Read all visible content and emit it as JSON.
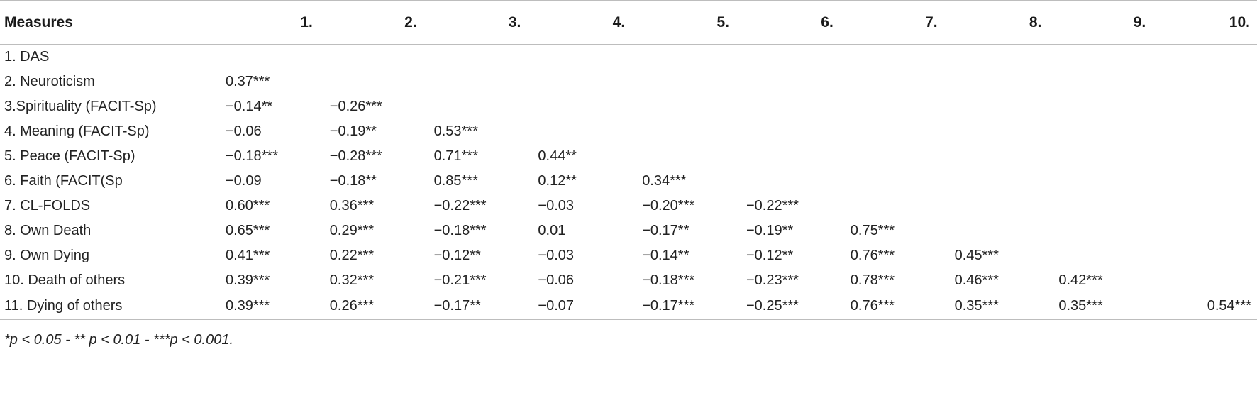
{
  "table": {
    "headers": [
      "Measures",
      "1.",
      "2.",
      "3.",
      "4.",
      "5.",
      "6.",
      "7.",
      "8.",
      "9.",
      "10."
    ],
    "rows": [
      {
        "label": "1. DAS",
        "cells": [
          "",
          "",
          "",
          "",
          "",
          "",
          "",
          "",
          "",
          ""
        ]
      },
      {
        "label": "2. Neuroticism",
        "cells": [
          "0.37***",
          "",
          "",
          "",
          "",
          "",
          "",
          "",
          "",
          ""
        ]
      },
      {
        "label": "3.Spirituality (FACIT-Sp)",
        "cells": [
          "−0.14**",
          "−0.26***",
          "",
          "",
          "",
          "",
          "",
          "",
          "",
          ""
        ]
      },
      {
        "label": "4. Meaning (FACIT-Sp)",
        "cells": [
          "−0.06",
          "−0.19**",
          "0.53***",
          "",
          "",
          "",
          "",
          "",
          "",
          ""
        ]
      },
      {
        "label": "5. Peace (FACIT-Sp)",
        "cells": [
          "−0.18***",
          "−0.28***",
          "0.71***",
          "0.44**",
          "",
          "",
          "",
          "",
          "",
          ""
        ]
      },
      {
        "label": "6. Faith (FACIT(Sp",
        "cells": [
          "−0.09",
          "−0.18**",
          "0.85***",
          "0.12**",
          "0.34***",
          "",
          "",
          "",
          "",
          ""
        ]
      },
      {
        "label": "7. CL-FOLDS",
        "cells": [
          "0.60***",
          "0.36***",
          "−0.22***",
          "−0.03",
          "−0.20***",
          "−0.22***",
          "",
          "",
          "",
          ""
        ]
      },
      {
        "label": "8. Own Death",
        "cells": [
          "0.65***",
          "0.29***",
          "−0.18***",
          "0.01",
          "−0.17**",
          "−0.19**",
          "0.75***",
          "",
          "",
          ""
        ]
      },
      {
        "label": "9. Own Dying",
        "cells": [
          "0.41***",
          "0.22***",
          "−0.12**",
          "−0.03",
          "−0.14**",
          "−0.12**",
          "0.76***",
          "0.45***",
          "",
          ""
        ]
      },
      {
        "label": "10. Death of others",
        "cells": [
          "0.39***",
          "0.32***",
          "−0.21***",
          "−0.06",
          "−0.18***",
          "−0.23***",
          "0.78***",
          "0.46***",
          "0.42***",
          ""
        ]
      },
      {
        "label": "11. Dying of others",
        "cells": [
          "0.39***",
          "0.26***",
          "−0.17**",
          "−0.07",
          "−0.17***",
          "−0.25***",
          "0.76***",
          "0.35***",
          "0.35***",
          "0.54***"
        ]
      }
    ]
  },
  "footnote": "*p < 0.05 - ** p < 0.01 - ***p < 0.001."
}
